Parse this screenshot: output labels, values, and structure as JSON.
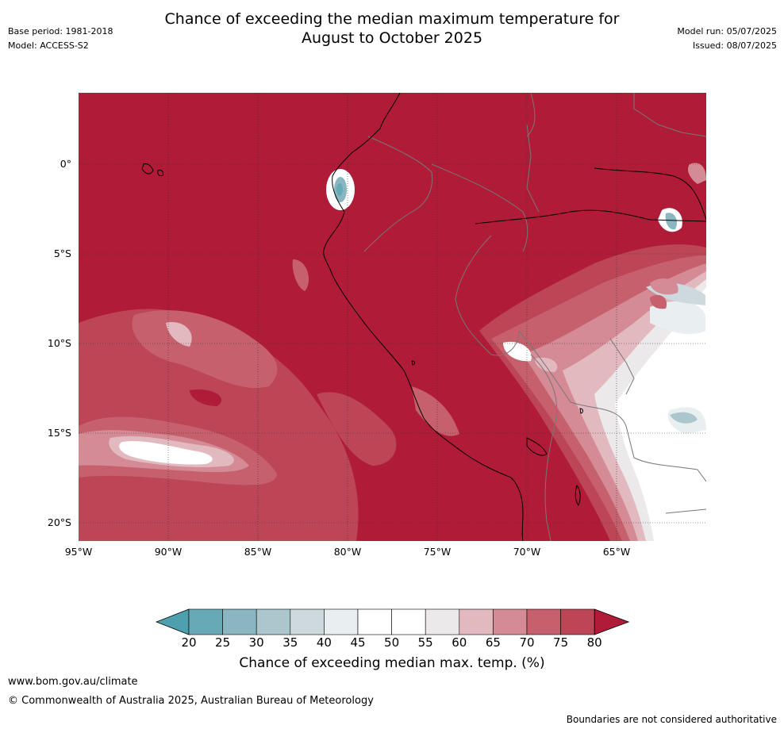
{
  "title_line1": "Chance of exceeding the median maximum temperature for",
  "title_line2": "August to October 2025",
  "base_period": "Base period: 1981-2018",
  "model": "Model: ACCESS-S2",
  "model_run": "Model run: 05/07/2025",
  "issued": "Issued: 08/07/2025",
  "lat_labels": [
    "0°",
    "5°S",
    "10°S",
    "15°S",
    "20°S"
  ],
  "lon_labels": [
    "95°W",
    "90°W",
    "85°W",
    "80°W",
    "75°W",
    "70°W",
    "65°W"
  ],
  "colorbar": {
    "ticks": [
      "20",
      "25",
      "30",
      "35",
      "40",
      "45",
      "50",
      "55",
      "60",
      "65",
      "70",
      "75",
      "80"
    ],
    "colors": [
      "#67aab6",
      "#89b6c1",
      "#abc7cd",
      "#cdd9dc",
      "#e9eff1",
      "#ffffff",
      "#ffffff",
      "#ebe9e9",
      "#e2b9bf",
      "#d48b95",
      "#c6606d",
      "#bc4656"
    ],
    "low_color": "#4fa0ae",
    "high_color": "#b01c38",
    "label": "Chance of exceeding median max. temp. (%)"
  },
  "website": "www.bom.gov.au/climate",
  "copyright": "© Commonwealth of Australia 2025, Australian Bureau of Meteorology",
  "disclaimer": "Boundaries are not considered authoritative"
}
